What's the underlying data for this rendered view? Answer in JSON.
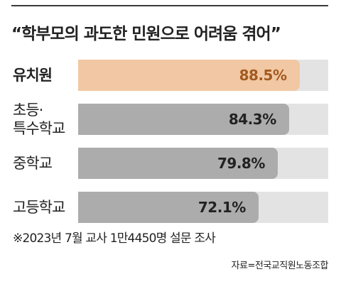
{
  "title": "“학부모의 과도한 민원으로 어려움 겪어”",
  "chart_data": {
    "type": "bar",
    "orientation": "horizontal",
    "categories": [
      [
        "유치원"
      ],
      [
        "초등·",
        "특수학교"
      ],
      [
        "중학교"
      ],
      [
        "고등학교"
      ]
    ],
    "values": [
      88.5,
      84.3,
      79.8,
      72.1
    ],
    "value_labels": [
      "88.5%",
      "84.3%",
      "79.8%",
      "72.1%"
    ],
    "unit": "%",
    "xlim": [
      0,
      100
    ],
    "highlight_index": 0,
    "colors": {
      "highlight_bar": "#f1c8a3",
      "highlight_text": "#a35a22",
      "bar": "#acacac",
      "text": "#222222",
      "track": "#e3e3e3"
    }
  },
  "note": "※2023년 7월 교사 1만4450명 설문 조사",
  "source": "자료=전국교직원노동조합"
}
